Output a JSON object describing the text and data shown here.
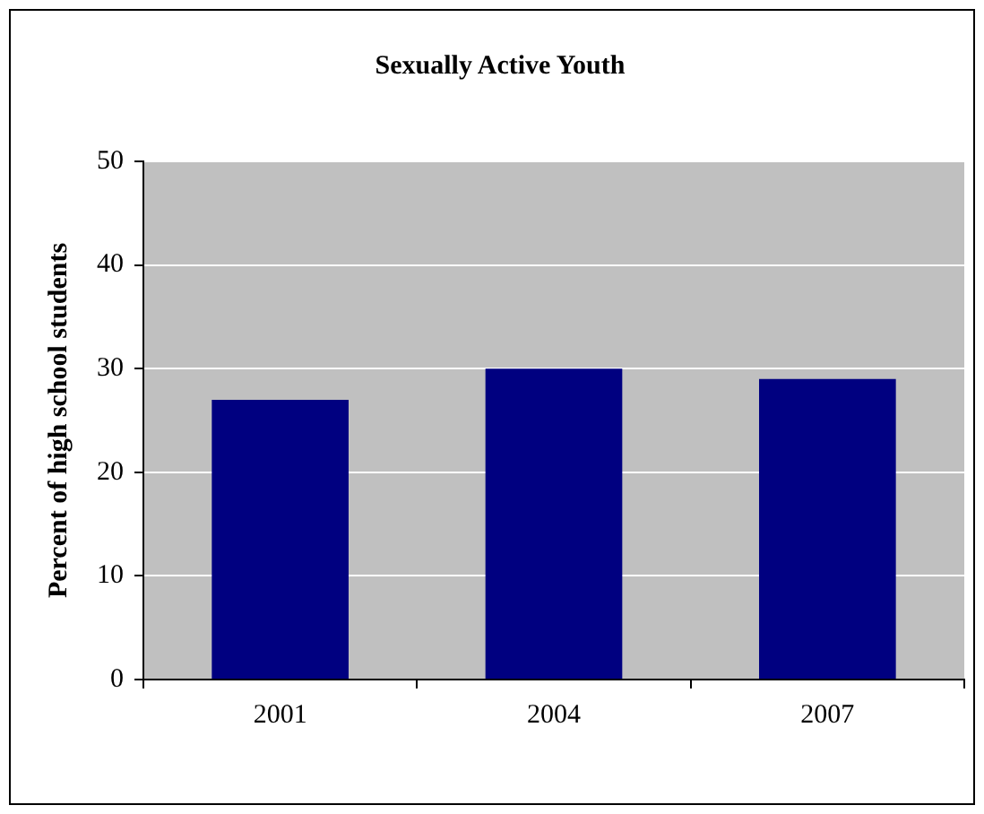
{
  "chart_data": {
    "type": "bar",
    "title": "Sexually Active Youth",
    "ylabel": "Percent of high school students",
    "categories": [
      "2001",
      "2004",
      "2007"
    ],
    "values": [
      27,
      30,
      29
    ],
    "color": "#000080",
    "ylim": [
      0,
      50
    ],
    "yticks": [
      0,
      10,
      20,
      30,
      40,
      50
    ],
    "grid": "y",
    "legend": false
  }
}
